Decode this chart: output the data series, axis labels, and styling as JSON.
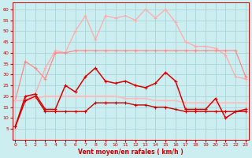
{
  "x": [
    0,
    1,
    2,
    3,
    4,
    5,
    6,
    7,
    8,
    9,
    10,
    11,
    12,
    13,
    14,
    15,
    16,
    17,
    18,
    19,
    20,
    21,
    22,
    23
  ],
  "line_rafales": [
    5,
    18,
    21,
    33,
    41,
    40,
    50,
    57,
    46,
    57,
    56,
    57,
    55,
    60,
    56,
    60,
    54,
    45,
    43,
    43,
    42,
    39,
    29,
    28
  ],
  "line_moy_high": [
    18,
    36,
    33,
    28,
    40,
    40,
    41,
    41,
    41,
    41,
    41,
    41,
    41,
    41,
    41,
    41,
    41,
    41,
    41,
    41,
    41,
    41,
    41,
    29
  ],
  "line_moy_flat": [
    18,
    18,
    19,
    20,
    20,
    20,
    20,
    20,
    20,
    20,
    20,
    19,
    19,
    19,
    18,
    18,
    18,
    17,
    17,
    17,
    17,
    17,
    17,
    17
  ],
  "line_dark1": [
    6,
    20,
    21,
    14,
    14,
    25,
    22,
    29,
    33,
    27,
    26,
    27,
    25,
    24,
    26,
    31,
    27,
    14,
    14,
    14,
    19,
    10,
    13,
    14
  ],
  "line_dark2": [
    6,
    18,
    20,
    13,
    13,
    13,
    13,
    13,
    17,
    17,
    17,
    17,
    16,
    16,
    15,
    15,
    14,
    13,
    13,
    13,
    13,
    13,
    13,
    13
  ],
  "bg_color": "#cceef0",
  "grid_color": "#aad4d8",
  "color_rafales": "#ffaaaa",
  "color_moy_high": "#ff8888",
  "color_moy_flat": "#ffbbbb",
  "color_dark1": "#dd0000",
  "color_dark2": "#cc0000",
  "xlabel": "Vent moyen/en rafales ( km/h )",
  "ylim": [
    0,
    63
  ],
  "xlim": [
    -0.3,
    23.3
  ],
  "yticks": [
    5,
    10,
    15,
    20,
    25,
    30,
    35,
    40,
    45,
    50,
    55,
    60
  ],
  "xticks": [
    0,
    1,
    2,
    3,
    4,
    5,
    6,
    7,
    8,
    9,
    10,
    11,
    12,
    13,
    14,
    15,
    16,
    17,
    18,
    19,
    20,
    21,
    22,
    23
  ]
}
